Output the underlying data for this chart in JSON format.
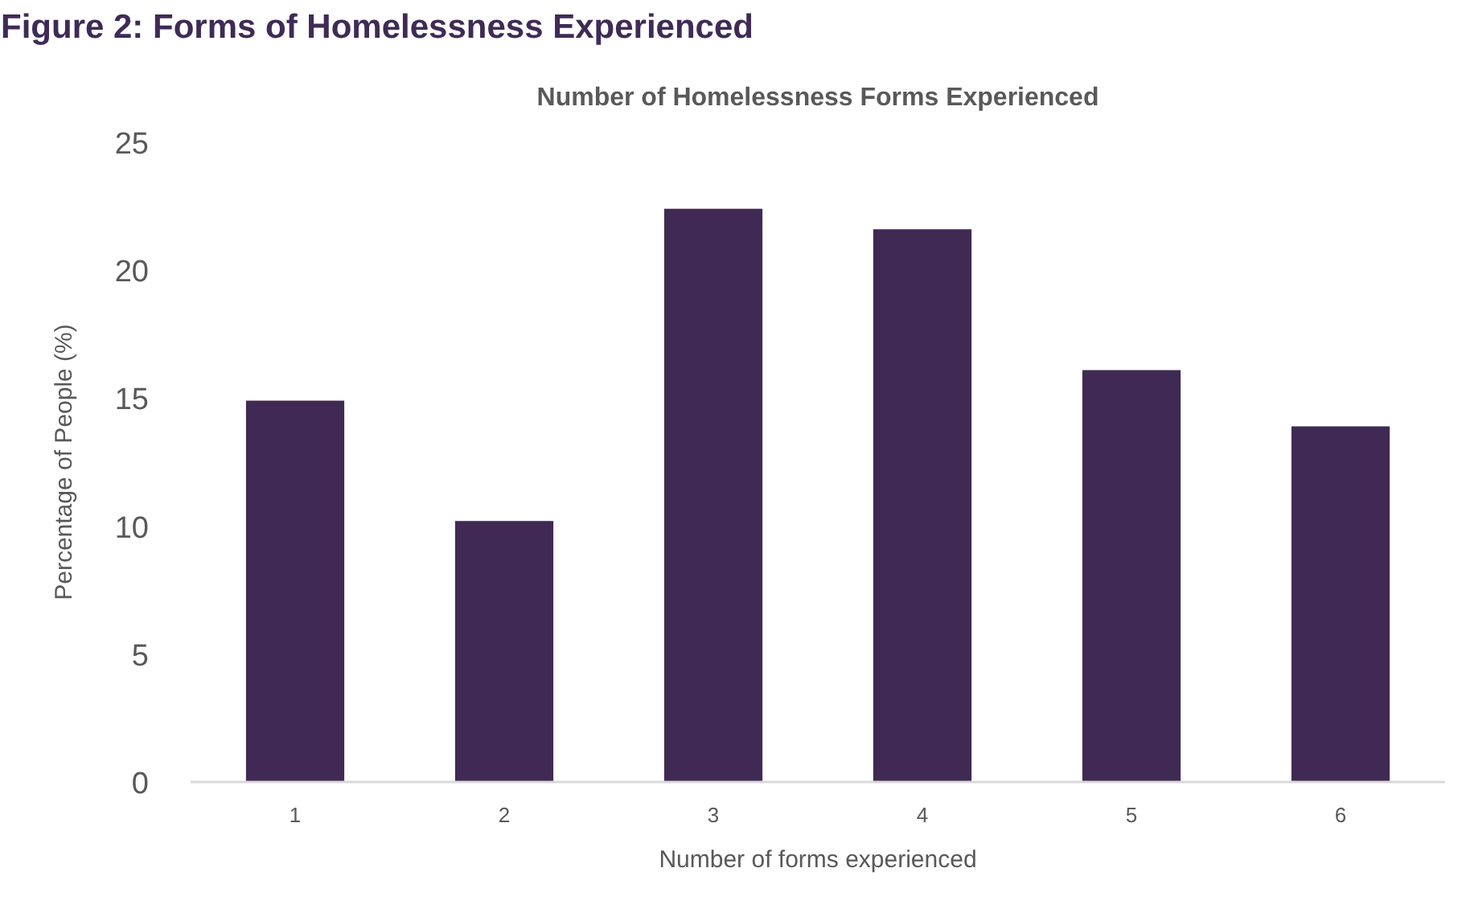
{
  "chart_data": {
    "type": "bar",
    "title": "Figure 2: Forms of Homelessness Experienced",
    "subtitle": "Number of Homelessness Forms Experienced",
    "xlabel": "Number of forms experienced",
    "ylabel": "Percentage of People (%)",
    "categories": [
      "1",
      "2",
      "3",
      "4",
      "5",
      "6"
    ],
    "values": [
      14.9,
      10.2,
      22.4,
      21.6,
      16.1,
      13.9
    ],
    "color": "#402a54",
    "ylim": [
      0,
      25
    ],
    "yticks": [
      0,
      5,
      10,
      15,
      20,
      25
    ],
    "grid": false
  }
}
